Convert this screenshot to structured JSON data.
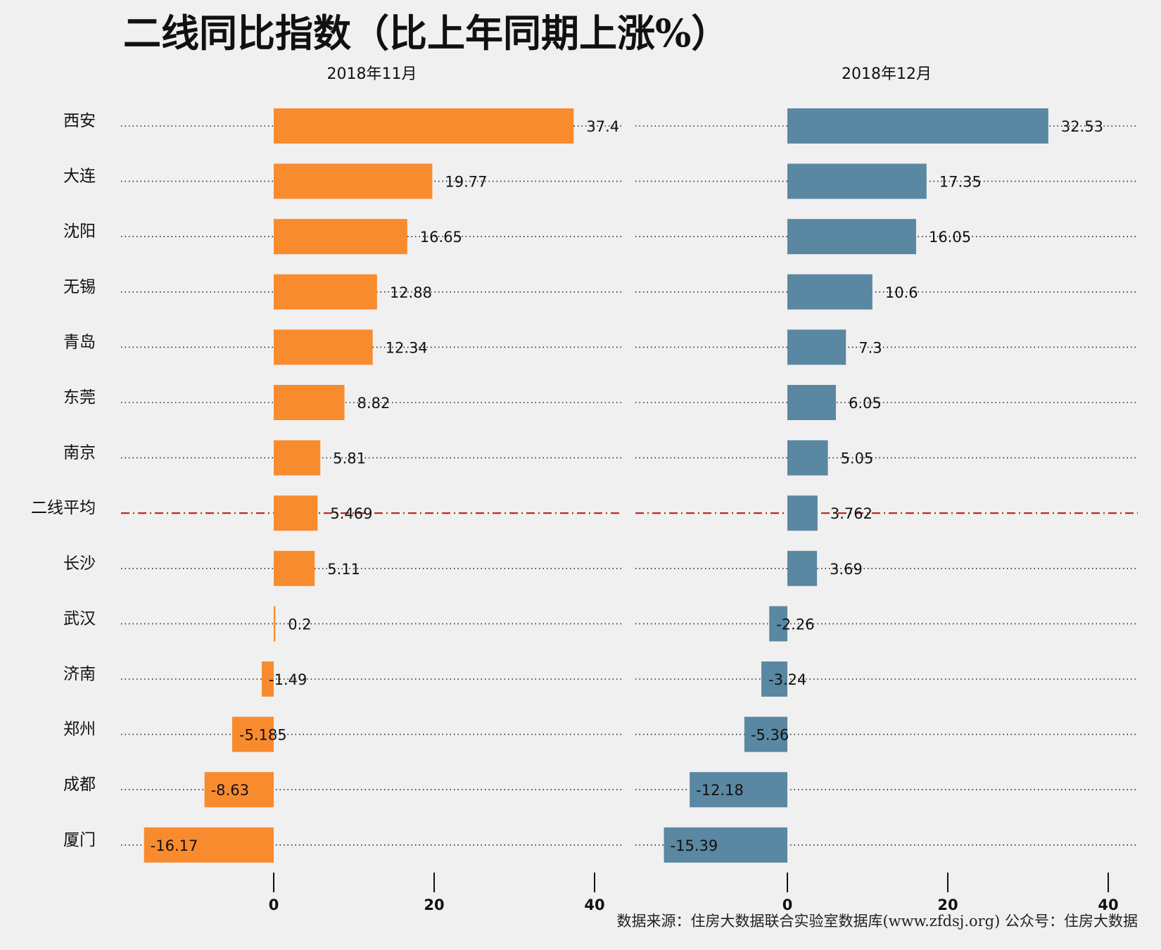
{
  "chart_data": {
    "type": "bar",
    "title": "二线同比指数（比上年同期上涨%）",
    "source": "数据来源：住房大数据联合实验室数据库(www.zfdsj.org) 公众号：住房大数据",
    "categories": [
      "西安",
      "大连",
      "沈阳",
      "无锡",
      "青岛",
      "东莞",
      "南京",
      "二线平均",
      "长沙",
      "武汉",
      "济南",
      "郑州",
      "成都",
      "厦门"
    ],
    "average_category": "二线平均",
    "average_line_color": "#b22222",
    "xlim": [
      -19,
      43
    ],
    "xticks": [
      0,
      20,
      40
    ],
    "grid": "dotted horizontal",
    "series": [
      {
        "name": "2018年11月",
        "color": "#f98b2f",
        "values": [
          37.4,
          19.77,
          16.65,
          12.88,
          12.34,
          8.82,
          5.81,
          5.469,
          5.11,
          0.2,
          -1.49,
          -5.185,
          -8.63,
          -16.17
        ],
        "labels": [
          "37.4",
          "19.77",
          "16.65",
          "12.88",
          "12.34",
          "8.82",
          "5.81",
          "5.469",
          "5.11",
          "0.2",
          "-1.49",
          "-5.185",
          "-8.63",
          "-16.17"
        ]
      },
      {
        "name": "2018年12月",
        "color": "#5a87a1",
        "values": [
          32.53,
          17.35,
          16.05,
          10.6,
          7.3,
          6.05,
          5.05,
          3.762,
          3.69,
          -2.26,
          -3.24,
          -5.36,
          -12.18,
          -15.39
        ],
        "labels": [
          "32.53",
          "17.35",
          "16.05",
          "10.6",
          "7.3",
          "6.05",
          "5.05",
          "3.762",
          "3.69",
          "-2.26",
          "-3.24",
          "-5.36",
          "-12.18",
          "-15.39"
        ]
      }
    ]
  }
}
